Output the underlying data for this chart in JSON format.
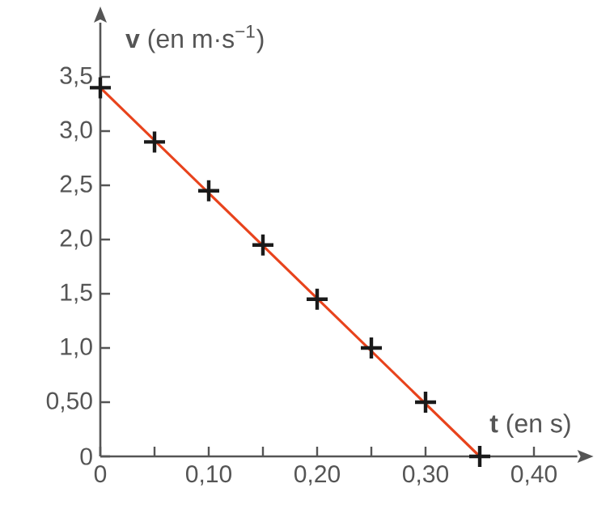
{
  "chart_data": {
    "type": "scatter",
    "xlabel": "**t** (en s)",
    "ylabel": "**v** (en m·s$^{−1}$)",
    "series": [
      {
        "type": "line",
        "color": "#e8431c",
        "x": [
          0,
          0.35
        ],
        "values": [
          3.4,
          0
        ]
      },
      {
        "marker": "cross",
        "color": "#1a1a1a",
        "x": [
          0,
          0.05,
          0.1,
          0.15,
          0.2,
          0.25,
          0.3,
          0.35
        ],
        "values": [
          3.4,
          2.9,
          2.45,
          1.95,
          1.45,
          1.0,
          0.5,
          0
        ]
      }
    ],
    "grid": false,
    "xlim": [
      0,
      0.44
    ],
    "ylim": [
      0,
      4.0
    ],
    "xticks": [
      {
        "value": 0,
        "label": "0"
      },
      {
        "value": 0.05,
        "label": null
      },
      {
        "value": 0.1,
        "label": "0,10"
      },
      {
        "value": 0.15,
        "label": null
      },
      {
        "value": 0.2,
        "label": "0,20"
      },
      {
        "value": 0.25,
        "label": null
      },
      {
        "value": 0.3,
        "label": "0,30"
      },
      {
        "value": 0.35,
        "label": null
      },
      {
        "value": 0.4,
        "label": "0,40"
      }
    ],
    "yticks": [
      {
        "value": 0,
        "label": "0"
      },
      {
        "value": 0.5,
        "label": "0,50"
      },
      {
        "value": 1.0,
        "label": "1,0"
      },
      {
        "value": 1.5,
        "label": "1,5"
      },
      {
        "value": 2.0,
        "label": "2,0"
      },
      {
        "value": 2.5,
        "label": "2,5"
      },
      {
        "value": 3.0,
        "label": "3,0"
      },
      {
        "value": 3.5,
        "label": "3,5"
      }
    ]
  }
}
